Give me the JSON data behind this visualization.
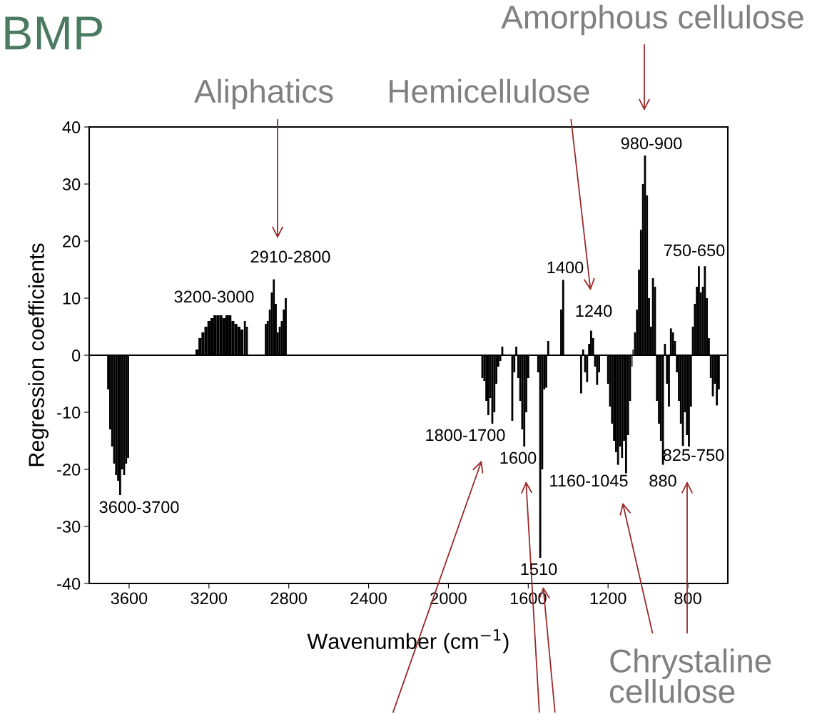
{
  "chart_data": {
    "type": "bar",
    "title": "BMP",
    "xlabel": "Wavenumber (cm$^{−1}$)",
    "ylabel": "Regression coefficients",
    "x": [
      3705,
      3695,
      3685,
      3675,
      3665,
      3655,
      3645,
      3635,
      3625,
      3615,
      3605,
      3260,
      3245,
      3230,
      3215,
      3200,
      3185,
      3170,
      3155,
      3140,
      3125,
      3110,
      3095,
      3080,
      3065,
      3050,
      3035,
      3020,
      3010,
      2915,
      2905,
      2895,
      2885,
      2875,
      2865,
      2855,
      2845,
      2835,
      2825,
      2815,
      1830,
      1820,
      1810,
      1800,
      1790,
      1780,
      1770,
      1760,
      1750,
      1740,
      1730,
      1680,
      1670,
      1660,
      1650,
      1640,
      1630,
      1620,
      1610,
      1600,
      1550,
      1540,
      1530,
      1520,
      1510,
      1500,
      1435,
      1425,
      1335,
      1325,
      1315,
      1305,
      1295,
      1285,
      1275,
      1265,
      1255,
      1245,
      1200,
      1190,
      1180,
      1170,
      1160,
      1150,
      1140,
      1130,
      1120,
      1110,
      1100,
      1090,
      1080,
      1075,
      1065,
      1055,
      1045,
      1035,
      1025,
      1015,
      1005,
      995,
      985,
      975,
      965,
      955,
      945,
      935,
      925,
      915,
      905,
      895,
      885,
      875,
      865,
      855,
      845,
      835,
      825,
      815,
      805,
      795,
      785,
      775,
      765,
      755,
      745,
      735,
      725,
      715,
      705,
      695,
      685,
      675,
      665,
      655,
      645
    ],
    "values": [
      -6,
      -13,
      -16,
      -19,
      -21,
      -22,
      -24.5,
      -20,
      -21,
      -19,
      -18,
      1,
      3,
      4,
      5,
      6,
      6.5,
      7,
      7,
      7,
      6.5,
      7,
      7,
      6,
      5.5,
      5,
      4.5,
      6,
      5,
      5.5,
      6,
      8,
      11,
      13.3,
      9,
      4,
      5,
      6,
      8,
      10,
      -4,
      -4.5,
      -8,
      -10.5,
      -7.5,
      -12,
      -10,
      -5,
      -2,
      -1,
      1.5,
      -11.5,
      -3,
      1.5,
      -4,
      -8,
      -13,
      -16,
      -10,
      -4,
      -3,
      -35.5,
      -20,
      -6,
      -5.7,
      2.5,
      8,
      13.2,
      -6.7,
      1,
      -3,
      -4.7,
      2,
      4.3,
      3,
      -2,
      -5.2,
      -3,
      -5,
      -9,
      -12,
      -15,
      -17,
      -19.2,
      -16,
      -18,
      -15,
      -20.7,
      -14,
      -8,
      -2,
      1,
      4,
      8,
      15,
      22,
      30,
      35,
      28,
      10,
      5,
      13.5,
      12,
      -8,
      -12,
      -15,
      -19.2,
      2,
      -5,
      -9,
      4.7,
      4,
      2.5,
      -3,
      -8,
      -12,
      -15.9,
      -10,
      -14,
      -16,
      -9,
      5,
      9,
      12,
      15.6,
      11,
      12,
      15.6,
      10,
      3,
      -4,
      -7.2,
      -5,
      -8.8,
      -6
    ],
    "color": "#000000",
    "xlim": [
      3800,
      600
    ],
    "xticks": [
      3600,
      3200,
      2800,
      2400,
      2000,
      1600,
      1200,
      800
    ],
    "ylim": [
      -40,
      40
    ],
    "yticks": [
      -40,
      -30,
      -20,
      -10,
      0,
      10,
      20,
      30,
      40
    ],
    "grid": false,
    "ref_lines": [
      {
        "axis": "y",
        "value": 0,
        "color": "#000000"
      }
    ],
    "annotations": [
      "3600-3700",
      "3200-3000",
      "2910-2800",
      "1400",
      "1240",
      "980-900",
      "750-650",
      "1800-1700",
      "1600",
      "1510",
      "1160-1045",
      "880",
      "825-750",
      "Amorphous cellulose",
      "Aliphatics",
      "Hemicellulose",
      "Chrystaline\ncellulose"
    ]
  }
}
